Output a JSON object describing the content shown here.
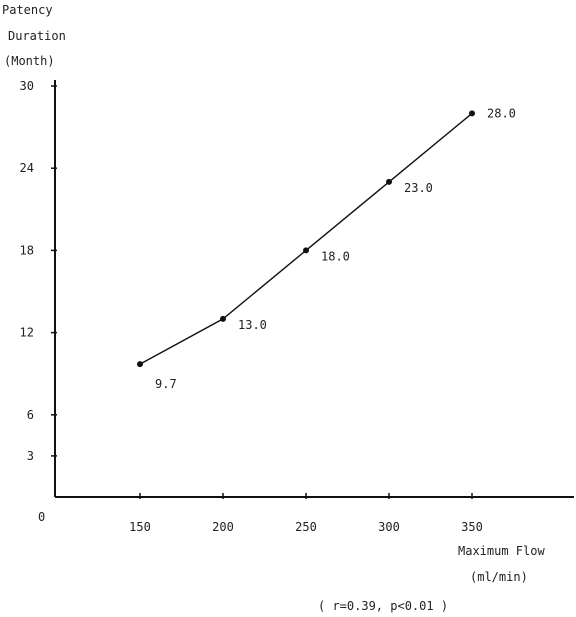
{
  "chart_data": {
    "type": "line",
    "ylabel_lines": [
      "Patency",
      "Duration",
      "(Month)"
    ],
    "xlabel_lines": [
      "Maximum Flow",
      "(ml/min)"
    ],
    "annotation": "( r=0.39, p<0.01 )",
    "origin_label": "0",
    "x_ticks": [
      150,
      200,
      250,
      300,
      350
    ],
    "y_ticks": [
      3,
      6,
      12,
      18,
      24,
      30
    ],
    "grid": false,
    "legend": "none",
    "series": [
      {
        "x": [
          150,
          200,
          250,
          300,
          350
        ],
        "y": [
          9.7,
          13.0,
          18.0,
          23.0,
          28.0
        ],
        "labels": [
          "9.7",
          "13.0",
          "18.0",
          "23.0",
          "28.0"
        ]
      }
    ]
  }
}
